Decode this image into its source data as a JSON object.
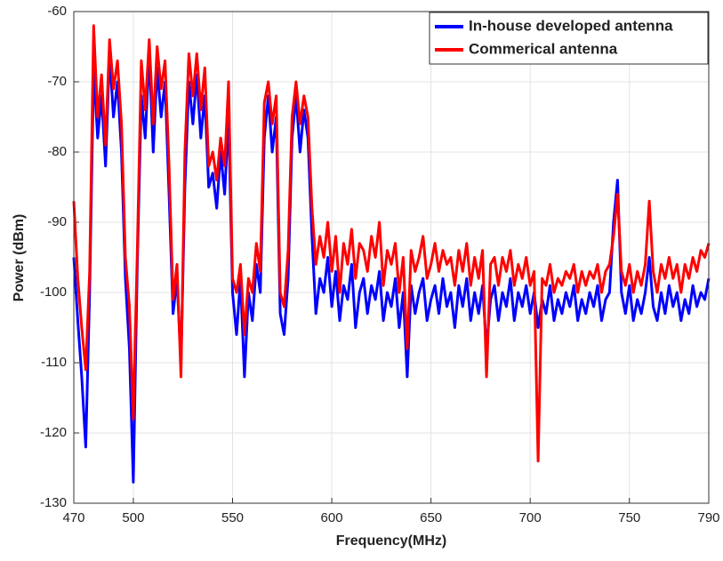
{
  "chart_data": {
    "type": "line",
    "xlabel": "Frequency(MHz)",
    "ylabel": "Power (dBm)",
    "xlim": [
      470,
      790
    ],
    "xticks": [
      470,
      500,
      550,
      600,
      650,
      700,
      750,
      790
    ],
    "ylim": [
      -130,
      -60
    ],
    "yticks": [
      -130,
      -120,
      -110,
      -100,
      -90,
      -80,
      -70,
      -60
    ],
    "grid": true,
    "legend": "top-right",
    "x": [
      470,
      472,
      474,
      476,
      478,
      480,
      482,
      484,
      486,
      488,
      490,
      492,
      494,
      496,
      498,
      500,
      502,
      504,
      506,
      508,
      510,
      512,
      514,
      516,
      518,
      520,
      522,
      524,
      526,
      528,
      530,
      532,
      534,
      536,
      538,
      540,
      542,
      544,
      546,
      548,
      550,
      552,
      554,
      556,
      558,
      560,
      562,
      564,
      566,
      568,
      570,
      572,
      574,
      576,
      578,
      580,
      582,
      584,
      586,
      588,
      590,
      592,
      594,
      596,
      598,
      600,
      602,
      604,
      606,
      608,
      610,
      612,
      614,
      616,
      618,
      620,
      622,
      624,
      626,
      628,
      630,
      632,
      634,
      636,
      638,
      640,
      642,
      644,
      646,
      648,
      650,
      652,
      654,
      656,
      658,
      660,
      662,
      664,
      666,
      668,
      670,
      672,
      674,
      676,
      678,
      680,
      682,
      684,
      686,
      688,
      690,
      692,
      694,
      696,
      698,
      700,
      702,
      704,
      706,
      708,
      710,
      712,
      714,
      716,
      718,
      720,
      722,
      724,
      726,
      728,
      730,
      732,
      734,
      736,
      738,
      740,
      742,
      744,
      746,
      748,
      750,
      752,
      754,
      756,
      758,
      760,
      762,
      764,
      766,
      768,
      770,
      772,
      774,
      776,
      778,
      780,
      782,
      784,
      786,
      788,
      790
    ],
    "series": [
      {
        "name": "In-house developed antenna",
        "color": "#0000ff",
        "values": [
          -95,
          -104,
          -112,
          -122,
          -100,
          -68,
          -78,
          -72,
          -82,
          -66,
          -75,
          -70,
          -80,
          -98,
          -108,
          -127,
          -96,
          -72,
          -78,
          -66,
          -80,
          -68,
          -75,
          -70,
          -86,
          -103,
          -98,
          -110,
          -85,
          -70,
          -76,
          -69,
          -78,
          -72,
          -85,
          -83,
          -88,
          -80,
          -86,
          -75,
          -100,
          -106,
          -98,
          -112,
          -100,
          -104,
          -96,
          -100,
          -78,
          -72,
          -80,
          -75,
          -103,
          -106,
          -98,
          -78,
          -72,
          -80,
          -74,
          -78,
          -92,
          -103,
          -98,
          -100,
          -95,
          -102,
          -97,
          -104,
          -99,
          -101,
          -96,
          -105,
          -100,
          -98,
          -103,
          -99,
          -101,
          -97,
          -104,
          -100,
          -102,
          -98,
          -105,
          -100,
          -112,
          -99,
          -103,
          -100,
          -98,
          -104,
          -101,
          -99,
          -103,
          -98,
          -102,
          -100,
          -105,
          -99,
          -102,
          -98,
          -104,
          -100,
          -103,
          -99,
          -108,
          -101,
          -99,
          -104,
          -100,
          -102,
          -98,
          -104,
          -100,
          -102,
          -99,
          -103,
          -100,
          -105,
          -101,
          -103,
          -99,
          -104,
          -101,
          -103,
          -100,
          -102,
          -99,
          -104,
          -101,
          -103,
          -100,
          -102,
          -99,
          -104,
          -101,
          -100,
          -90,
          -84,
          -100,
          -103,
          -99,
          -104,
          -101,
          -103,
          -100,
          -95,
          -102,
          -104,
          -100,
          -103,
          -99,
          -102,
          -100,
          -104,
          -101,
          -103,
          -99,
          -102,
          -100,
          -101,
          -98
        ]
      },
      {
        "name": "Commerical antenna",
        "color": "#ff0000",
        "values": [
          -87,
          -98,
          -105,
          -111,
          -97,
          -62,
          -75,
          -69,
          -79,
          -64,
          -71,
          -67,
          -76,
          -95,
          -102,
          -118,
          -94,
          -67,
          -74,
          -64,
          -76,
          -65,
          -71,
          -67,
          -82,
          -101,
          -96,
          -112,
          -80,
          -66,
          -72,
          -66,
          -74,
          -68,
          -82,
          -80,
          -84,
          -78,
          -82,
          -70,
          -98,
          -100,
          -96,
          -106,
          -98,
          -100,
          -93,
          -97,
          -73,
          -70,
          -76,
          -72,
          -100,
          -102,
          -94,
          -75,
          -70,
          -76,
          -72,
          -75,
          -88,
          -96,
          -92,
          -95,
          -90,
          -97,
          -92,
          -100,
          -93,
          -96,
          -91,
          -98,
          -93,
          -94,
          -97,
          -92,
          -95,
          -90,
          -99,
          -94,
          -96,
          -93,
          -100,
          -95,
          -108,
          -94,
          -97,
          -95,
          -92,
          -98,
          -96,
          -93,
          -97,
          -94,
          -96,
          -95,
          -99,
          -94,
          -97,
          -93,
          -99,
          -95,
          -98,
          -94,
          -112,
          -96,
          -95,
          -99,
          -95,
          -97,
          -94,
          -99,
          -96,
          -98,
          -95,
          -99,
          -97,
          -124,
          -98,
          -99,
          -96,
          -100,
          -98,
          -99,
          -97,
          -98,
          -96,
          -100,
          -97,
          -99,
          -97,
          -98,
          -96,
          -100,
          -97,
          -96,
          -92,
          -86,
          -97,
          -99,
          -96,
          -100,
          -97,
          -99,
          -96,
          -87,
          -97,
          -100,
          -96,
          -98,
          -95,
          -98,
          -96,
          -100,
          -96,
          -98,
          -95,
          -97,
          -94,
          -95,
          -93
        ]
      }
    ]
  }
}
